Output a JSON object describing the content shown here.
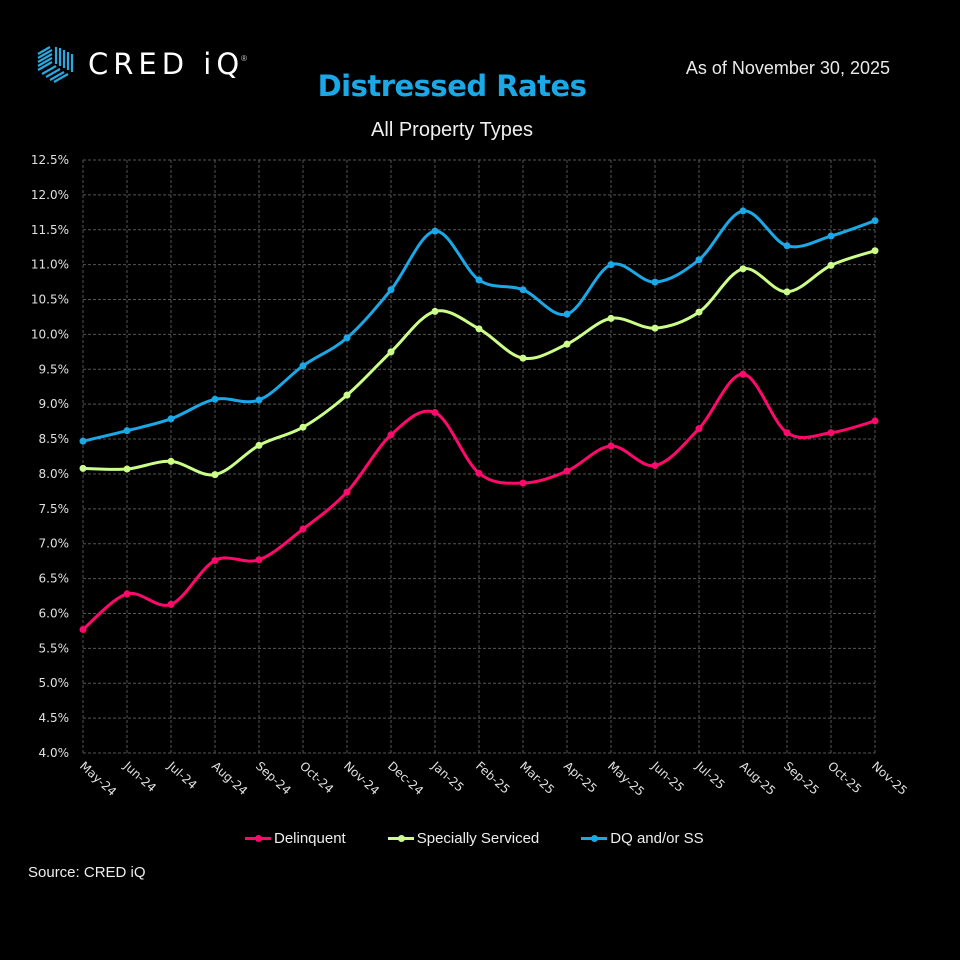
{
  "header": {
    "logo_text": "CRED iQ",
    "logo_mark": "®",
    "as_of": "As of November 30, 2025",
    "title": "Distressed Rates",
    "subtitle": "All Property Types"
  },
  "footer": {
    "source": "Source: CRED iQ"
  },
  "chart_data": {
    "type": "line",
    "title": "Distressed Rates",
    "subtitle": "All Property Types",
    "xlabel": "",
    "ylabel": "",
    "ylim": [
      4.0,
      12.5
    ],
    "ytick_step": 0.5,
    "ytick_format": "percent_1dp",
    "grid": true,
    "smooth": true,
    "legend_position": "bottom",
    "categories": [
      "May-24",
      "Jun-24",
      "Jul-24",
      "Aug-24",
      "Sep-24",
      "Oct-24",
      "Nov-24",
      "Dec-24",
      "Jan-25",
      "Feb-25",
      "Mar-25",
      "Apr-25",
      "May-25",
      "Jun-25",
      "Jul-25",
      "Aug-25",
      "Sep-25",
      "Oct-25",
      "Nov-25"
    ],
    "series": [
      {
        "name": "Delinquent",
        "color": "#ff0a6c",
        "values": [
          5.77,
          6.28,
          6.13,
          6.76,
          6.77,
          7.21,
          7.74,
          8.56,
          8.88,
          8.01,
          7.87,
          8.04,
          8.4,
          8.12,
          8.65,
          9.43,
          8.59,
          8.59,
          8.76
        ]
      },
      {
        "name": "Specially Serviced",
        "color": "#ccff8a",
        "values": [
          8.08,
          8.07,
          8.18,
          7.99,
          8.41,
          8.67,
          9.13,
          9.75,
          10.33,
          10.08,
          9.66,
          9.86,
          10.23,
          10.09,
          10.32,
          10.94,
          10.61,
          10.99,
          11.2
        ]
      },
      {
        "name": "DQ and/or SS",
        "color": "#1aa8e6",
        "values": [
          8.47,
          8.62,
          8.79,
          9.07,
          9.06,
          9.55,
          9.95,
          10.64,
          11.48,
          10.78,
          10.64,
          10.29,
          11.0,
          10.75,
          11.07,
          11.77,
          11.27,
          11.41,
          11.63
        ]
      }
    ]
  }
}
